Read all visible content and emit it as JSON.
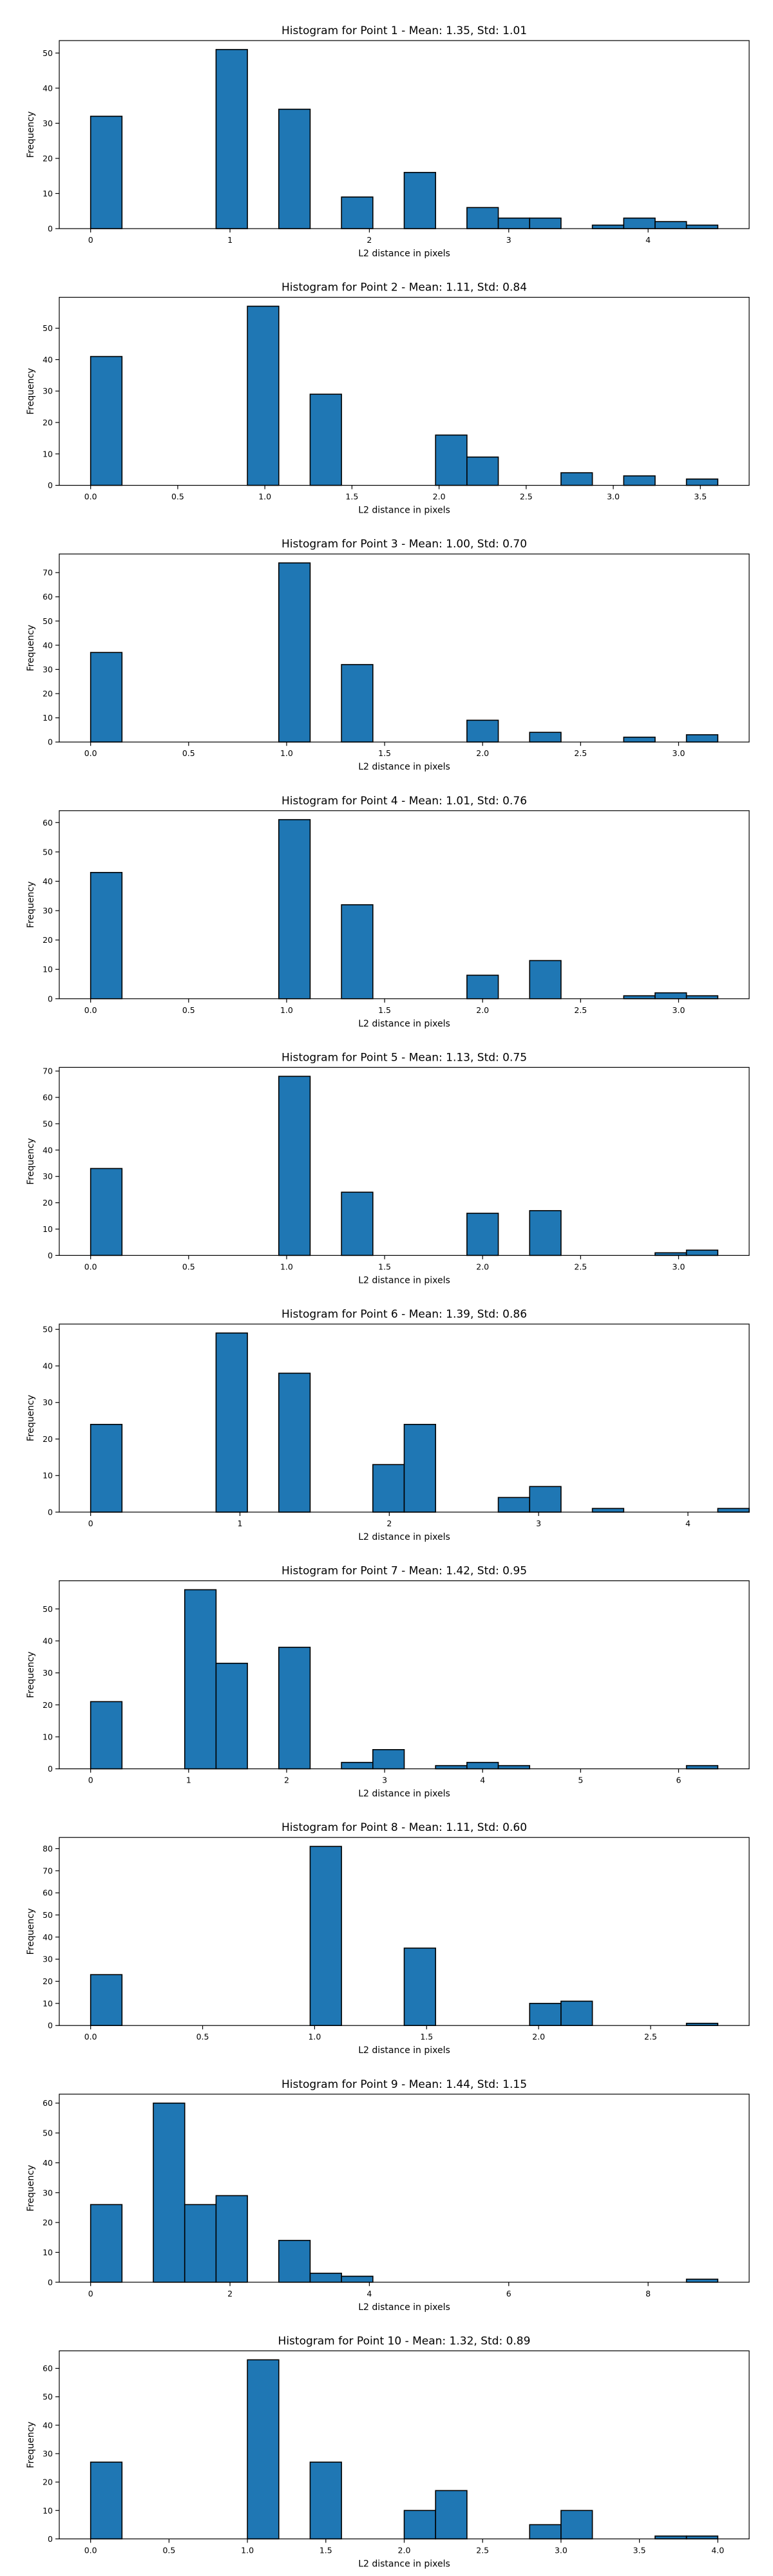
{
  "chart_data": [
    {
      "type": "bar",
      "title": "Histogram for Point 1 - Mean: 1.35, Std: 1.01",
      "xlabel": "L2 distance in pixels",
      "ylabel": "Frequency",
      "xlim": [
        -0.225,
        4.725
      ],
      "ylim": [
        0,
        53.55
      ],
      "xticks": [
        0,
        1,
        2,
        3,
        4
      ],
      "yticks": [
        0,
        10,
        20,
        30,
        40,
        50
      ],
      "bin_width": 0.225,
      "bars": [
        {
          "x": 0.0,
          "value": 32
        },
        {
          "x": 0.9,
          "value": 51
        },
        {
          "x": 1.35,
          "value": 34
        },
        {
          "x": 1.8,
          "value": 9
        },
        {
          "x": 2.25,
          "value": 16
        },
        {
          "x": 2.7,
          "value": 6
        },
        {
          "x": 2.925,
          "value": 3
        },
        {
          "x": 3.15,
          "value": 3
        },
        {
          "x": 3.6,
          "value": 1
        },
        {
          "x": 3.825,
          "value": 3
        },
        {
          "x": 4.05,
          "value": 2
        },
        {
          "x": 4.275,
          "value": 1
        }
      ]
    },
    {
      "type": "bar",
      "title": "Histogram for Point 2 - Mean: 1.11, Std: 0.84",
      "xlabel": "L2 distance in pixels",
      "ylabel": "Frequency",
      "xlim": [
        -0.18,
        3.78
      ],
      "ylim": [
        0,
        59.85
      ],
      "xticks": [
        0.0,
        0.5,
        1.0,
        1.5,
        2.0,
        2.5,
        3.0,
        3.5
      ],
      "yticks": [
        0,
        10,
        20,
        30,
        40,
        50
      ],
      "xtick_labels": [
        "0.0",
        "0.5",
        "1.0",
        "1.5",
        "2.0",
        "2.5",
        "3.0",
        "3.5"
      ],
      "bin_width": 0.18,
      "bars": [
        {
          "x": 0.0,
          "value": 41
        },
        {
          "x": 0.9,
          "value": 57
        },
        {
          "x": 1.26,
          "value": 29
        },
        {
          "x": 1.98,
          "value": 16
        },
        {
          "x": 2.16,
          "value": 9
        },
        {
          "x": 2.7,
          "value": 4
        },
        {
          "x": 3.06,
          "value": 3
        },
        {
          "x": 3.42,
          "value": 2
        }
      ]
    },
    {
      "type": "bar",
      "title": "Histogram for Point 3 - Mean: 1.00, Std: 0.70",
      "xlabel": "L2 distance in pixels",
      "ylabel": "Frequency",
      "xlim": [
        -0.16,
        3.36
      ],
      "ylim": [
        0,
        77.7
      ],
      "xticks": [
        0.0,
        0.5,
        1.0,
        1.5,
        2.0,
        2.5,
        3.0
      ],
      "yticks": [
        0,
        10,
        20,
        30,
        40,
        50,
        60,
        70
      ],
      "xtick_labels": [
        "0.0",
        "0.5",
        "1.0",
        "1.5",
        "2.0",
        "2.5",
        "3.0"
      ],
      "bin_width": 0.16,
      "bars": [
        {
          "x": 0.0,
          "value": 37
        },
        {
          "x": 0.96,
          "value": 74
        },
        {
          "x": 1.28,
          "value": 32
        },
        {
          "x": 1.92,
          "value": 9
        },
        {
          "x": 2.24,
          "value": 4
        },
        {
          "x": 2.72,
          "value": 2
        },
        {
          "x": 3.04,
          "value": 3
        }
      ]
    },
    {
      "type": "bar",
      "title": "Histogram for Point 4 - Mean: 1.01, Std: 0.76",
      "xlabel": "L2 distance in pixels",
      "ylabel": "Frequency",
      "xlim": [
        -0.16,
        3.36
      ],
      "ylim": [
        0,
        64.05
      ],
      "xticks": [
        0.0,
        0.5,
        1.0,
        1.5,
        2.0,
        2.5,
        3.0
      ],
      "yticks": [
        0,
        10,
        20,
        30,
        40,
        50,
        60
      ],
      "xtick_labels": [
        "0.0",
        "0.5",
        "1.0",
        "1.5",
        "2.0",
        "2.5",
        "3.0"
      ],
      "bin_width": 0.16,
      "bars": [
        {
          "x": 0.0,
          "value": 43
        },
        {
          "x": 0.96,
          "value": 61
        },
        {
          "x": 1.28,
          "value": 32
        },
        {
          "x": 1.92,
          "value": 8
        },
        {
          "x": 2.24,
          "value": 13
        },
        {
          "x": 2.72,
          "value": 1
        },
        {
          "x": 2.88,
          "value": 2
        },
        {
          "x": 3.04,
          "value": 1
        }
      ]
    },
    {
      "type": "bar",
      "title": "Histogram for Point 5 - Mean: 1.13, Std: 0.75",
      "xlabel": "L2 distance in pixels",
      "ylabel": "Frequency",
      "xlim": [
        -0.16,
        3.36
      ],
      "ylim": [
        0,
        71.4
      ],
      "xticks": [
        0.0,
        0.5,
        1.0,
        1.5,
        2.0,
        2.5,
        3.0
      ],
      "yticks": [
        0,
        10,
        20,
        30,
        40,
        50,
        60,
        70
      ],
      "xtick_labels": [
        "0.0",
        "0.5",
        "1.0",
        "1.5",
        "2.0",
        "2.5",
        "3.0"
      ],
      "bin_width": 0.16,
      "bars": [
        {
          "x": 0.0,
          "value": 33
        },
        {
          "x": 0.96,
          "value": 68
        },
        {
          "x": 1.28,
          "value": 24
        },
        {
          "x": 1.92,
          "value": 16
        },
        {
          "x": 2.24,
          "value": 17
        },
        {
          "x": 2.88,
          "value": 1
        },
        {
          "x": 3.04,
          "value": 2
        }
      ]
    },
    {
      "type": "bar",
      "title": "Histogram for Point 6 - Mean: 1.39, Std: 0.86",
      "xlabel": "L2 distance in pixels",
      "ylabel": "Frequency",
      "xlim": [
        -0.21,
        4.41
      ],
      "ylim": [
        0,
        51.45
      ],
      "xticks": [
        0,
        1,
        2,
        3,
        4
      ],
      "yticks": [
        0,
        10,
        20,
        30,
        40,
        50
      ],
      "bin_width": 0.21,
      "bars": [
        {
          "x": 0.0,
          "value": 24
        },
        {
          "x": 0.84,
          "value": 49
        },
        {
          "x": 1.26,
          "value": 38
        },
        {
          "x": 1.89,
          "value": 13
        },
        {
          "x": 2.1,
          "value": 24
        },
        {
          "x": 2.73,
          "value": 4
        },
        {
          "x": 2.94,
          "value": 7
        },
        {
          "x": 3.36,
          "value": 1
        },
        {
          "x": 4.2,
          "value": 1
        }
      ]
    },
    {
      "type": "bar",
      "title": "Histogram for Point 7 - Mean: 1.42, Std: 0.95",
      "xlabel": "L2 distance in pixels",
      "ylabel": "Frequency",
      "xlim": [
        -0.32,
        6.72
      ],
      "ylim": [
        0,
        58.8
      ],
      "xticks": [
        0,
        1,
        2,
        3,
        4,
        5,
        6
      ],
      "yticks": [
        0,
        10,
        20,
        30,
        40,
        50
      ],
      "bin_width": 0.32,
      "bars": [
        {
          "x": 0.0,
          "value": 21
        },
        {
          "x": 0.96,
          "value": 56
        },
        {
          "x": 1.28,
          "value": 33
        },
        {
          "x": 1.92,
          "value": 38
        },
        {
          "x": 2.56,
          "value": 2
        },
        {
          "x": 2.88,
          "value": 6
        },
        {
          "x": 3.52,
          "value": 1
        },
        {
          "x": 3.84,
          "value": 2
        },
        {
          "x": 4.16,
          "value": 1
        },
        {
          "x": 6.08,
          "value": 1
        }
      ]
    },
    {
      "type": "bar",
      "title": "Histogram for Point 8 - Mean: 1.11, Std: 0.60",
      "xlabel": "L2 distance in pixels",
      "ylabel": "Frequency",
      "xlim": [
        -0.14,
        2.94
      ],
      "ylim": [
        0,
        85.05
      ],
      "xticks": [
        0.0,
        0.5,
        1.0,
        1.5,
        2.0,
        2.5
      ],
      "yticks": [
        0,
        10,
        20,
        30,
        40,
        50,
        60,
        70,
        80
      ],
      "xtick_labels": [
        "0.0",
        "0.5",
        "1.0",
        "1.5",
        "2.0",
        "2.5"
      ],
      "bin_width": 0.14,
      "bars": [
        {
          "x": 0.0,
          "value": 23
        },
        {
          "x": 0.98,
          "value": 81
        },
        {
          "x": 1.4,
          "value": 35
        },
        {
          "x": 1.96,
          "value": 10
        },
        {
          "x": 2.1,
          "value": 11
        },
        {
          "x": 2.66,
          "value": 1
        }
      ]
    },
    {
      "type": "bar",
      "title": "Histogram for Point 9 - Mean: 1.44, Std: 1.15",
      "xlabel": "L2 distance in pixels",
      "ylabel": "Frequency",
      "xlim": [
        -0.45,
        9.45
      ],
      "ylim": [
        0,
        63.0
      ],
      "xticks": [
        0,
        2,
        4,
        6,
        8
      ],
      "yticks": [
        0,
        10,
        20,
        30,
        40,
        50,
        60
      ],
      "bin_width": 0.45,
      "bars": [
        {
          "x": 0.0,
          "value": 26
        },
        {
          "x": 0.9,
          "value": 60
        },
        {
          "x": 1.35,
          "value": 26
        },
        {
          "x": 1.8,
          "value": 29
        },
        {
          "x": 2.7,
          "value": 14
        },
        {
          "x": 3.15,
          "value": 3
        },
        {
          "x": 3.6,
          "value": 2
        },
        {
          "x": 8.55,
          "value": 1
        }
      ]
    },
    {
      "type": "bar",
      "title": "Histogram for Point 10 - Mean: 1.32, Std: 0.89",
      "xlabel": "L2 distance in pixels",
      "ylabel": "Frequency",
      "xlim": [
        -0.2,
        4.2
      ],
      "ylim": [
        0,
        66.15
      ],
      "xticks": [
        0.0,
        0.5,
        1.0,
        1.5,
        2.0,
        2.5,
        3.0,
        3.5,
        4.0
      ],
      "yticks": [
        0,
        10,
        20,
        30,
        40,
        50,
        60
      ],
      "xtick_labels": [
        "0.0",
        "0.5",
        "1.0",
        "1.5",
        "2.0",
        "2.5",
        "3.0",
        "3.5",
        "4.0"
      ],
      "bin_width": 0.2,
      "bars": [
        {
          "x": 0.0,
          "value": 27
        },
        {
          "x": 1.0,
          "value": 63
        },
        {
          "x": 1.4,
          "value": 27
        },
        {
          "x": 2.0,
          "value": 10
        },
        {
          "x": 2.2,
          "value": 17
        },
        {
          "x": 2.8,
          "value": 5
        },
        {
          "x": 3.0,
          "value": 10
        },
        {
          "x": 3.6,
          "value": 1
        },
        {
          "x": 3.8,
          "value": 1
        }
      ]
    }
  ],
  "colors": {
    "bar_fill": "#1f77b4",
    "bar_edge": "#000000",
    "axes": "#000000",
    "background": "#ffffff"
  }
}
